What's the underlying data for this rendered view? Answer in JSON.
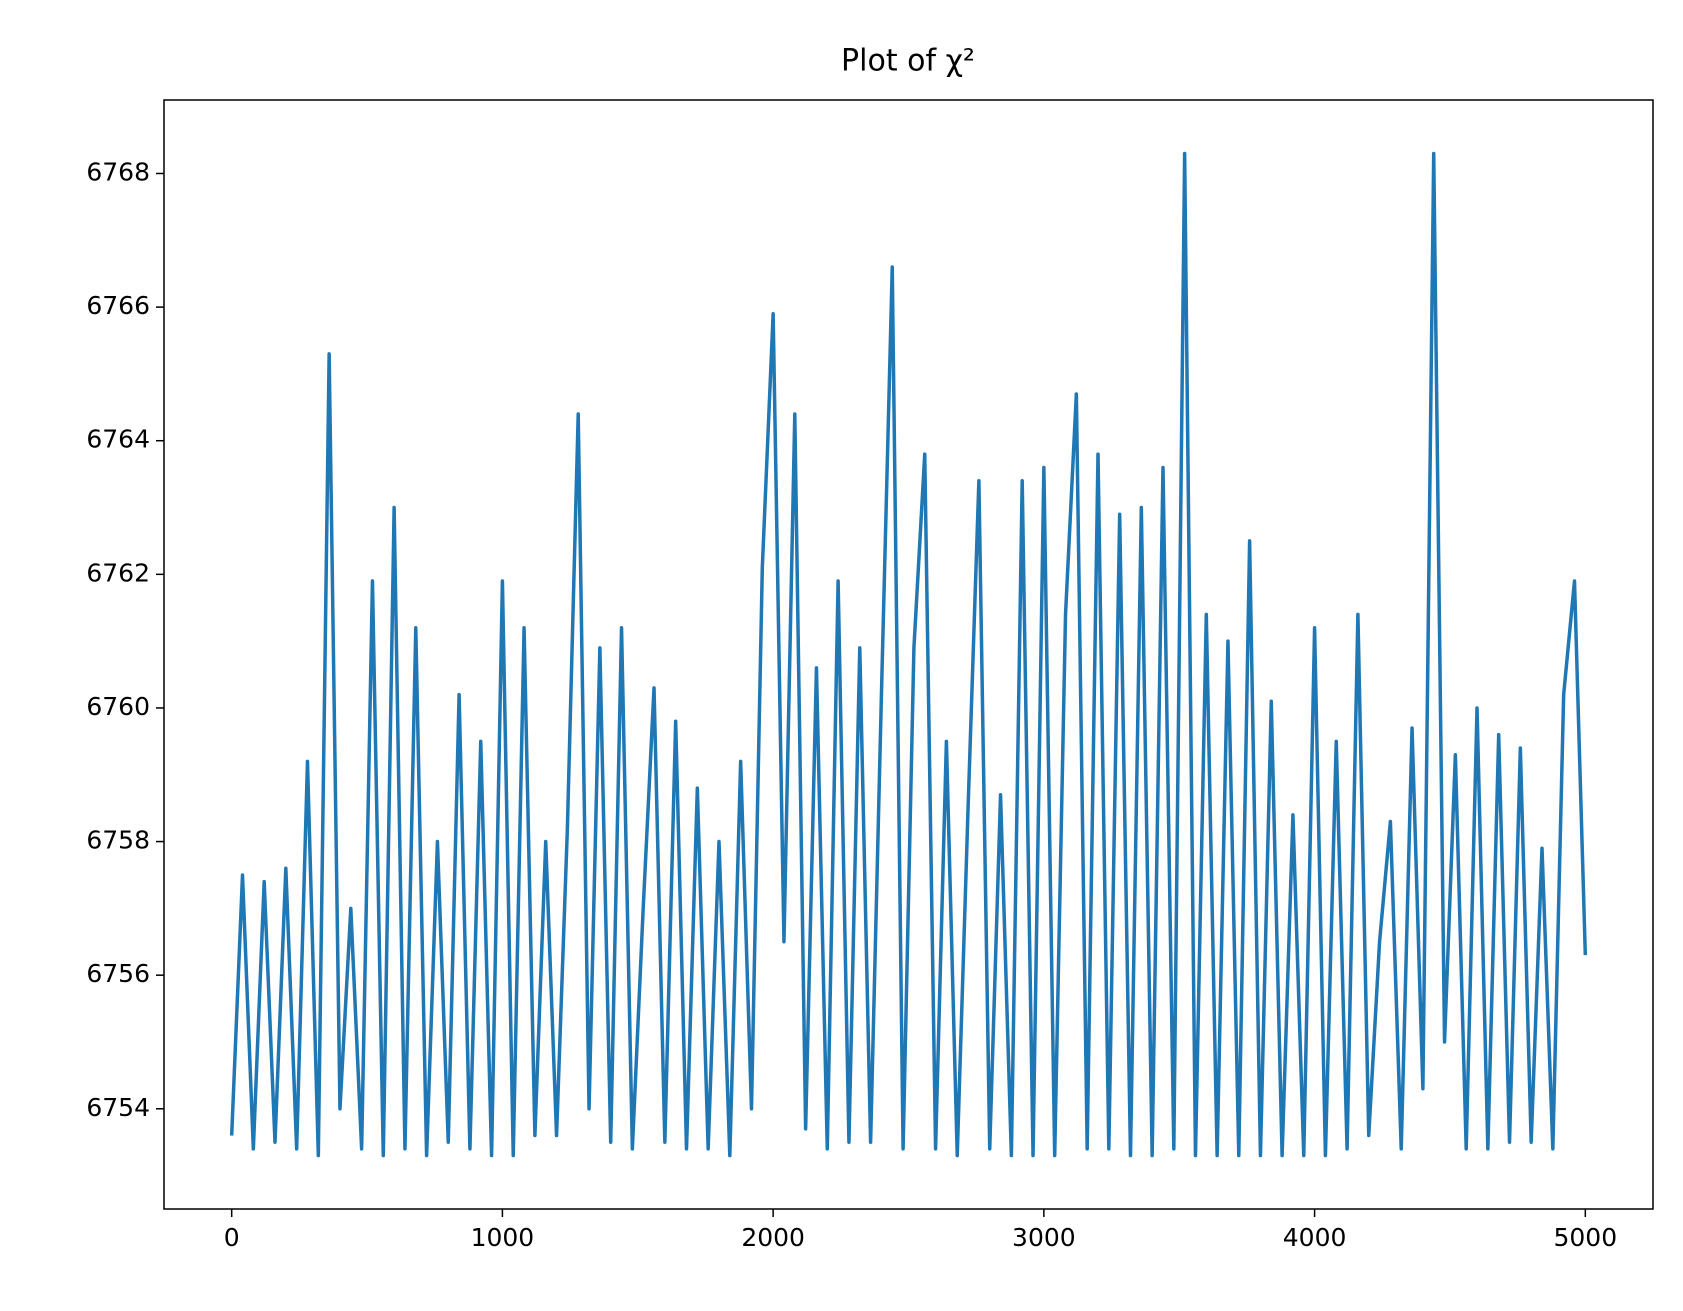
{
  "chart_data": {
    "type": "line",
    "title": "Plot of χ²",
    "x": [
      0,
      40,
      80,
      120,
      160,
      200,
      240,
      280,
      320,
      360,
      400,
      440,
      480,
      520,
      560,
      600,
      640,
      680,
      720,
      760,
      800,
      840,
      880,
      920,
      960,
      1000,
      1040,
      1080,
      1120,
      1160,
      1200,
      1240,
      1280,
      1320,
      1360,
      1400,
      1440,
      1480,
      1520,
      1560,
      1600,
      1640,
      1680,
      1720,
      1760,
      1800,
      1840,
      1880,
      1920,
      1960,
      2000,
      2040,
      2080,
      2120,
      2160,
      2200,
      2240,
      2280,
      2320,
      2360,
      2400,
      2440,
      2480,
      2520,
      2560,
      2600,
      2640,
      2680,
      2720,
      2760,
      2800,
      2840,
      2880,
      2920,
      2960,
      3000,
      3040,
      3080,
      3120,
      3160,
      3200,
      3240,
      3280,
      3320,
      3360,
      3400,
      3440,
      3480,
      3520,
      3560,
      3600,
      3640,
      3680,
      3720,
      3760,
      3800,
      3840,
      3880,
      3920,
      3960,
      4000,
      4040,
      4080,
      4120,
      4160,
      4200,
      4240,
      4280,
      4320,
      4360,
      4400,
      4440,
      4480,
      4520,
      4560,
      4600,
      4640,
      4680,
      4720,
      4760,
      4800,
      4840,
      4880,
      4920,
      4960,
      5000
    ],
    "series": [
      {
        "color": "#1f77b4",
        "values": [
          6753.6,
          6757.5,
          6753.4,
          6757.4,
          6753.5,
          6757.6,
          6753.4,
          6759.2,
          6753.3,
          6765.3,
          6754.0,
          6757.0,
          6753.4,
          6761.9,
          6753.3,
          6763.0,
          6753.4,
          6761.2,
          6753.3,
          6758.0,
          6753.5,
          6760.2,
          6753.4,
          6759.5,
          6753.3,
          6761.9,
          6753.3,
          6761.2,
          6753.6,
          6758.0,
          6753.6,
          6758.2,
          6764.4,
          6754.0,
          6760.9,
          6753.5,
          6761.2,
          6753.4,
          6757.0,
          6760.3,
          6753.5,
          6759.8,
          6753.4,
          6758.8,
          6753.4,
          6758.0,
          6753.3,
          6759.2,
          6754.0,
          6762.1,
          6765.9,
          6756.5,
          6764.4,
          6753.7,
          6760.6,
          6753.4,
          6761.9,
          6753.5,
          6760.9,
          6753.5,
          6760.2,
          6766.6,
          6753.4,
          6760.9,
          6763.8,
          6753.4,
          6759.5,
          6753.3,
          6758.5,
          6763.4,
          6753.4,
          6758.7,
          6753.3,
          6763.4,
          6753.3,
          6763.6,
          6753.3,
          6761.4,
          6764.7,
          6753.4,
          6763.8,
          6753.4,
          6762.9,
          6753.3,
          6763.0,
          6753.3,
          6763.6,
          6753.4,
          6768.3,
          6753.3,
          6761.4,
          6753.3,
          6761.0,
          6753.3,
          6762.5,
          6753.3,
          6760.1,
          6753.3,
          6758.4,
          6753.3,
          6761.2,
          6753.3,
          6759.5,
          6753.4,
          6761.4,
          6753.6,
          6756.5,
          6758.3,
          6753.4,
          6759.7,
          6754.3,
          6768.3,
          6755.0,
          6759.3,
          6753.4,
          6760.0,
          6753.4,
          6759.6,
          6753.5,
          6759.4,
          6753.5,
          6757.9,
          6753.4,
          6760.2,
          6761.9,
          6756.3
        ]
      }
    ],
    "xlim": [
      -250,
      5250
    ],
    "xticks": [
      0,
      1000,
      2000,
      3000,
      4000,
      5000
    ],
    "ylim": [
      6752.5,
      6769.1
    ],
    "yticks": [
      6754,
      6756,
      6758,
      6760,
      6762,
      6764,
      6766,
      6768
    ]
  }
}
